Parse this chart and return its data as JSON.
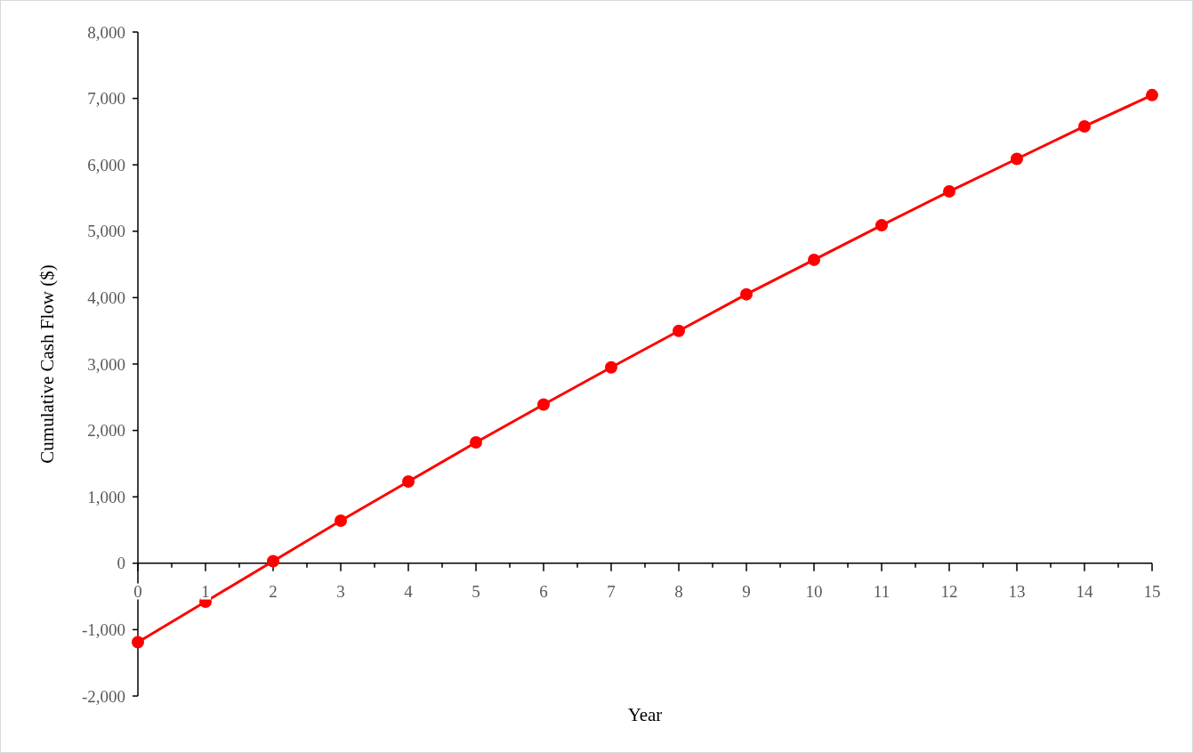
{
  "chart_data": {
    "type": "line",
    "xlabel": "Year",
    "ylabel": "Cumulative Cash Flow ($)",
    "x": [
      0,
      1,
      2,
      3,
      4,
      5,
      6,
      7,
      8,
      9,
      10,
      11,
      12,
      13,
      14,
      15
    ],
    "series": [
      {
        "color": "#ff0000",
        "values": [
          -1190,
          -580,
          30,
          640,
          1230,
          1820,
          2390,
          2950,
          3500,
          4050,
          4570,
          5090,
          5600,
          6090,
          6580,
          7050
        ]
      }
    ],
    "xlim": [
      0,
      15
    ],
    "xticks": [
      0,
      {
        "value": 0.5,
        "label": null
      },
      1,
      {
        "value": 1.5,
        "label": null
      },
      2,
      {
        "value": 2.5,
        "label": null
      },
      3,
      {
        "value": 3.5,
        "label": null
      },
      4,
      {
        "value": 4.5,
        "label": null
      },
      5,
      {
        "value": 5.5,
        "label": null
      },
      6,
      {
        "value": 6.5,
        "label": null
      },
      7,
      {
        "value": 7.5,
        "label": null
      },
      8,
      {
        "value": 8.5,
        "label": null
      },
      9,
      {
        "value": 9.5,
        "label": null
      },
      10,
      {
        "value": 10.5,
        "label": null
      },
      11,
      {
        "value": 11.5,
        "label": null
      },
      12,
      {
        "value": 12.5,
        "label": null
      },
      13,
      {
        "value": 13.5,
        "label": null
      },
      14,
      {
        "value": 14.5,
        "label": null
      },
      15
    ],
    "ylim": [
      -2000,
      8000
    ],
    "yticks": [
      {
        "value": -2000,
        "label": "-2,000"
      },
      {
        "value": -1000,
        "label": "-1,000"
      },
      0,
      {
        "value": 1000,
        "label": "1,000"
      },
      {
        "value": 2000,
        "label": "2,000"
      },
      {
        "value": 3000,
        "label": "3,000"
      },
      {
        "value": 4000,
        "label": "4,000"
      },
      {
        "value": 5000,
        "label": "5,000"
      },
      {
        "value": 6000,
        "label": "6,000"
      },
      {
        "value": 7000,
        "label": "7,000"
      },
      {
        "value": 8000,
        "label": "8,000"
      }
    ],
    "marker": "circle",
    "line_style": "solid"
  }
}
